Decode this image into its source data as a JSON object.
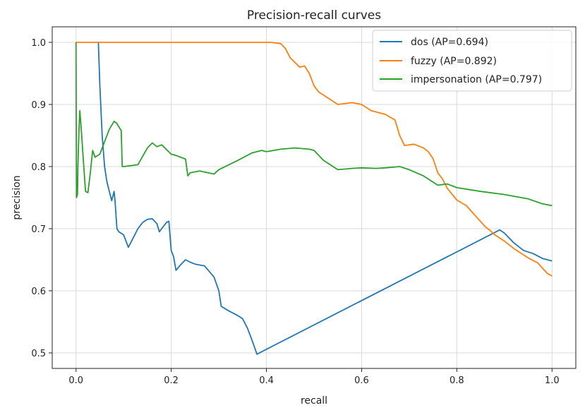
{
  "chart_data": {
    "type": "line",
    "title": "Precision-recall curves",
    "xlabel": "recall",
    "ylabel": "precision",
    "xlim": [
      -0.05,
      1.05
    ],
    "ylim": [
      0.475,
      1.025
    ],
    "xticks": [
      "0.0",
      "0.2",
      "0.4",
      "0.6",
      "0.8",
      "1.0"
    ],
    "yticks": [
      "0.5",
      "0.6",
      "0.7",
      "0.8",
      "0.9",
      "1.0"
    ],
    "grid": true,
    "legend_position": "top-right",
    "series": [
      {
        "name": "dos (AP=0.694)",
        "color": "#1f77b4",
        "x": [
          0.047,
          0.05,
          0.055,
          0.06,
          0.065,
          0.07,
          0.075,
          0.08,
          0.082,
          0.086,
          0.09,
          0.1,
          0.11,
          0.12,
          0.13,
          0.14,
          0.15,
          0.16,
          0.17,
          0.175,
          0.18,
          0.19,
          0.195,
          0.2,
          0.205,
          0.21,
          0.22,
          0.23,
          0.24,
          0.25,
          0.27,
          0.29,
          0.3,
          0.305,
          0.32,
          0.34,
          0.35,
          0.36,
          0.37,
          0.38,
          0.89,
          0.9,
          0.92,
          0.94,
          0.96,
          0.98,
          1.0
        ],
        "y": [
          1.0,
          0.93,
          0.85,
          0.8,
          0.775,
          0.76,
          0.745,
          0.76,
          0.745,
          0.7,
          0.695,
          0.69,
          0.67,
          0.685,
          0.7,
          0.71,
          0.715,
          0.716,
          0.708,
          0.695,
          0.7,
          0.71,
          0.712,
          0.665,
          0.655,
          0.633,
          0.642,
          0.65,
          0.646,
          0.643,
          0.64,
          0.622,
          0.6,
          0.575,
          0.568,
          0.56,
          0.555,
          0.54,
          0.52,
          0.498,
          0.698,
          0.693,
          0.677,
          0.665,
          0.66,
          0.652,
          0.648
        ]
      },
      {
        "name": "fuzzy (AP=0.892)",
        "color": "#ff7f0e",
        "x": [
          0.0,
          0.41,
          0.43,
          0.44,
          0.45,
          0.47,
          0.48,
          0.49,
          0.5,
          0.51,
          0.52,
          0.55,
          0.58,
          0.6,
          0.62,
          0.65,
          0.67,
          0.68,
          0.69,
          0.71,
          0.73,
          0.74,
          0.75,
          0.76,
          0.77,
          0.78,
          0.8,
          0.82,
          0.84,
          0.86,
          0.87,
          0.88,
          0.9,
          0.92,
          0.95,
          0.97,
          0.99,
          1.0
        ],
        "y": [
          1.0,
          1.0,
          0.998,
          0.99,
          0.975,
          0.96,
          0.962,
          0.95,
          0.93,
          0.92,
          0.915,
          0.9,
          0.903,
          0.9,
          0.89,
          0.884,
          0.875,
          0.85,
          0.834,
          0.836,
          0.83,
          0.824,
          0.813,
          0.79,
          0.78,
          0.765,
          0.746,
          0.737,
          0.72,
          0.703,
          0.697,
          0.69,
          0.68,
          0.668,
          0.653,
          0.645,
          0.628,
          0.624
        ]
      },
      {
        "name": "impersonation (AP=0.797)",
        "color": "#2ca02c",
        "x": [
          0.0,
          0.001,
          0.003,
          0.004,
          0.006,
          0.008,
          0.01,
          0.012,
          0.015,
          0.02,
          0.025,
          0.03,
          0.035,
          0.04,
          0.05,
          0.06,
          0.07,
          0.08,
          0.085,
          0.095,
          0.097,
          0.1,
          0.13,
          0.15,
          0.16,
          0.17,
          0.18,
          0.2,
          0.21,
          0.22,
          0.23,
          0.235,
          0.24,
          0.26,
          0.29,
          0.3,
          0.34,
          0.37,
          0.39,
          0.4,
          0.43,
          0.46,
          0.49,
          0.5,
          0.52,
          0.55,
          0.58,
          0.6,
          0.63,
          0.65,
          0.68,
          0.7,
          0.73,
          0.76,
          0.78,
          0.8,
          0.85,
          0.9,
          0.95,
          0.98,
          1.0
        ],
        "y": [
          1.0,
          0.75,
          0.755,
          0.8,
          0.855,
          0.89,
          0.87,
          0.85,
          0.815,
          0.76,
          0.758,
          0.79,
          0.826,
          0.815,
          0.82,
          0.84,
          0.86,
          0.873,
          0.87,
          0.858,
          0.8,
          0.8,
          0.803,
          0.83,
          0.838,
          0.832,
          0.835,
          0.82,
          0.818,
          0.815,
          0.812,
          0.785,
          0.79,
          0.793,
          0.788,
          0.795,
          0.81,
          0.822,
          0.826,
          0.824,
          0.828,
          0.83,
          0.828,
          0.826,
          0.81,
          0.795,
          0.797,
          0.798,
          0.797,
          0.798,
          0.8,
          0.795,
          0.785,
          0.77,
          0.772,
          0.766,
          0.76,
          0.755,
          0.748,
          0.74,
          0.737
        ]
      }
    ]
  }
}
